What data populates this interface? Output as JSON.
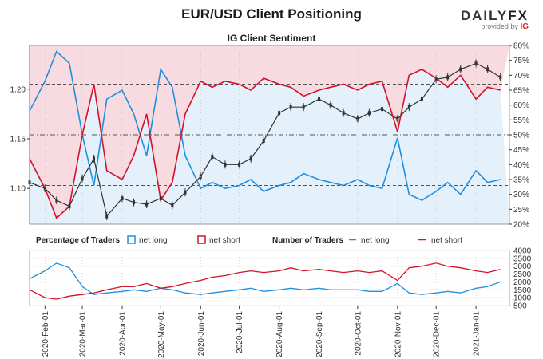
{
  "header": {
    "title": "EUR/USD Client Positioning",
    "subtitle": "IG Client Sentiment",
    "logo_daily": "DAILY",
    "logo_fx": "FX",
    "logo_provided": "provided by",
    "logo_ig": "IG"
  },
  "colors": {
    "long": "#1f8fe0",
    "short": "#d3112a",
    "long_fill": "#e4f1fb",
    "short_fill": "#f8dbe0",
    "candle": "#333333"
  },
  "chart_data": [
    {
      "type": "line",
      "name": "EUR/USD price with IG client sentiment",
      "x_ticks": [
        "2020-Feb-01",
        "2020-Mar-01",
        "2020-Apr-01",
        "2020-May-01",
        "2020-Jun-01",
        "2020-Jul-01",
        "2020-Aug-01",
        "2020-Sep-01",
        "2020-Oct-01",
        "2020-Nov-01",
        "2020-Dec-01",
        "2021-Jan-01"
      ],
      "x": [
        "2020-Jan-20",
        "2020-Feb-01",
        "2020-Feb-10",
        "2020-Feb-20",
        "2020-Mar-01",
        "2020-Mar-10",
        "2020-Mar-20",
        "2020-Apr-01",
        "2020-Apr-10",
        "2020-Apr-20",
        "2020-May-01",
        "2020-May-10",
        "2020-May-20",
        "2020-Jun-01",
        "2020-Jun-10",
        "2020-Jun-20",
        "2020-Jul-01",
        "2020-Jul-10",
        "2020-Jul-20",
        "2020-Aug-01",
        "2020-Aug-10",
        "2020-Aug-20",
        "2020-Sep-01",
        "2020-Sep-10",
        "2020-Sep-20",
        "2020-Oct-01",
        "2020-Oct-10",
        "2020-Oct-20",
        "2020-Nov-01",
        "2020-Nov-10",
        "2020-Nov-20",
        "2020-Dec-01",
        "2020-Dec-10",
        "2020-Dec-20",
        "2021-Jan-01",
        "2021-Jan-10",
        "2021-Jan-20"
      ],
      "price_left_axis": {
        "ticks": [
          1.1,
          1.15,
          1.2
        ],
        "range": [
          1.064,
          1.244
        ]
      },
      "sentiment_right_axis": {
        "ticks": [
          "20%",
          "25%",
          "30%",
          "35%",
          "40%",
          "45%",
          "50%",
          "55%",
          "60%",
          "65%",
          "70%",
          "75%",
          "80%"
        ],
        "range": [
          20,
          80
        ]
      },
      "price_close": [
        1.106,
        1.1,
        1.088,
        1.082,
        1.11,
        1.13,
        1.072,
        1.09,
        1.086,
        1.084,
        1.09,
        1.083,
        1.096,
        1.112,
        1.132,
        1.124,
        1.124,
        1.13,
        1.148,
        1.176,
        1.182,
        1.182,
        1.19,
        1.184,
        1.176,
        1.17,
        1.176,
        1.18,
        1.17,
        1.182,
        1.19,
        1.21,
        1.212,
        1.22,
        1.226,
        1.22,
        1.212
      ],
      "series": [
        {
          "name": "net long",
          "values": [
            58,
            68,
            78,
            74,
            50,
            33,
            62,
            65,
            57,
            43,
            72,
            66,
            43,
            32,
            34,
            32,
            33,
            35,
            31,
            33,
            34,
            37,
            35,
            34,
            33,
            35,
            33,
            32,
            49,
            30,
            28,
            31,
            34,
            30,
            38,
            34,
            35
          ]
        },
        {
          "name": "net short",
          "values": [
            42,
            32,
            22,
            26,
            50,
            67,
            38,
            35,
            43,
            57,
            28,
            34,
            57,
            68,
            66,
            68,
            67,
            65,
            69,
            67,
            66,
            63,
            65,
            66,
            67,
            65,
            67,
            68,
            51,
            70,
            72,
            69,
            66,
            70,
            62,
            66,
            65
          ]
        }
      ],
      "reference_lines": [
        {
          "value": "50%",
          "style": "dash-dot"
        },
        {
          "value": "67%",
          "style": "dashed"
        },
        {
          "value": "33%",
          "style": "dashed"
        }
      ]
    },
    {
      "type": "line",
      "name": "Number of Traders",
      "y_ticks": [
        "500",
        "1000",
        "1500",
        "2000",
        "2500",
        "3000",
        "3500",
        "4000"
      ],
      "ylim": [
        500,
        4000
      ],
      "series": [
        {
          "name": "net long",
          "values": [
            2200,
            2700,
            3200,
            2900,
            1700,
            1200,
            1300,
            1400,
            1500,
            1400,
            1600,
            1500,
            1300,
            1200,
            1300,
            1400,
            1500,
            1600,
            1400,
            1500,
            1600,
            1500,
            1600,
            1500,
            1500,
            1500,
            1400,
            1400,
            1900,
            1300,
            1200,
            1300,
            1400,
            1300,
            1600,
            1700,
            2000
          ]
        },
        {
          "name": "net short",
          "values": [
            1500,
            1000,
            900,
            1100,
            1200,
            1300,
            1500,
            1700,
            1700,
            1900,
            1600,
            1700,
            1900,
            2100,
            2300,
            2400,
            2600,
            2700,
            2600,
            2700,
            2900,
            2700,
            2800,
            2700,
            2600,
            2700,
            2600,
            2700,
            2100,
            2900,
            3000,
            3200,
            3000,
            2900,
            2700,
            2600,
            2800
          ]
        }
      ]
    }
  ],
  "legend": {
    "pct_title": "Percentage of Traders",
    "pct_long": "net long",
    "pct_short": "net short",
    "num_title": "Number of Traders",
    "num_long": "net long",
    "num_short": "net short"
  }
}
